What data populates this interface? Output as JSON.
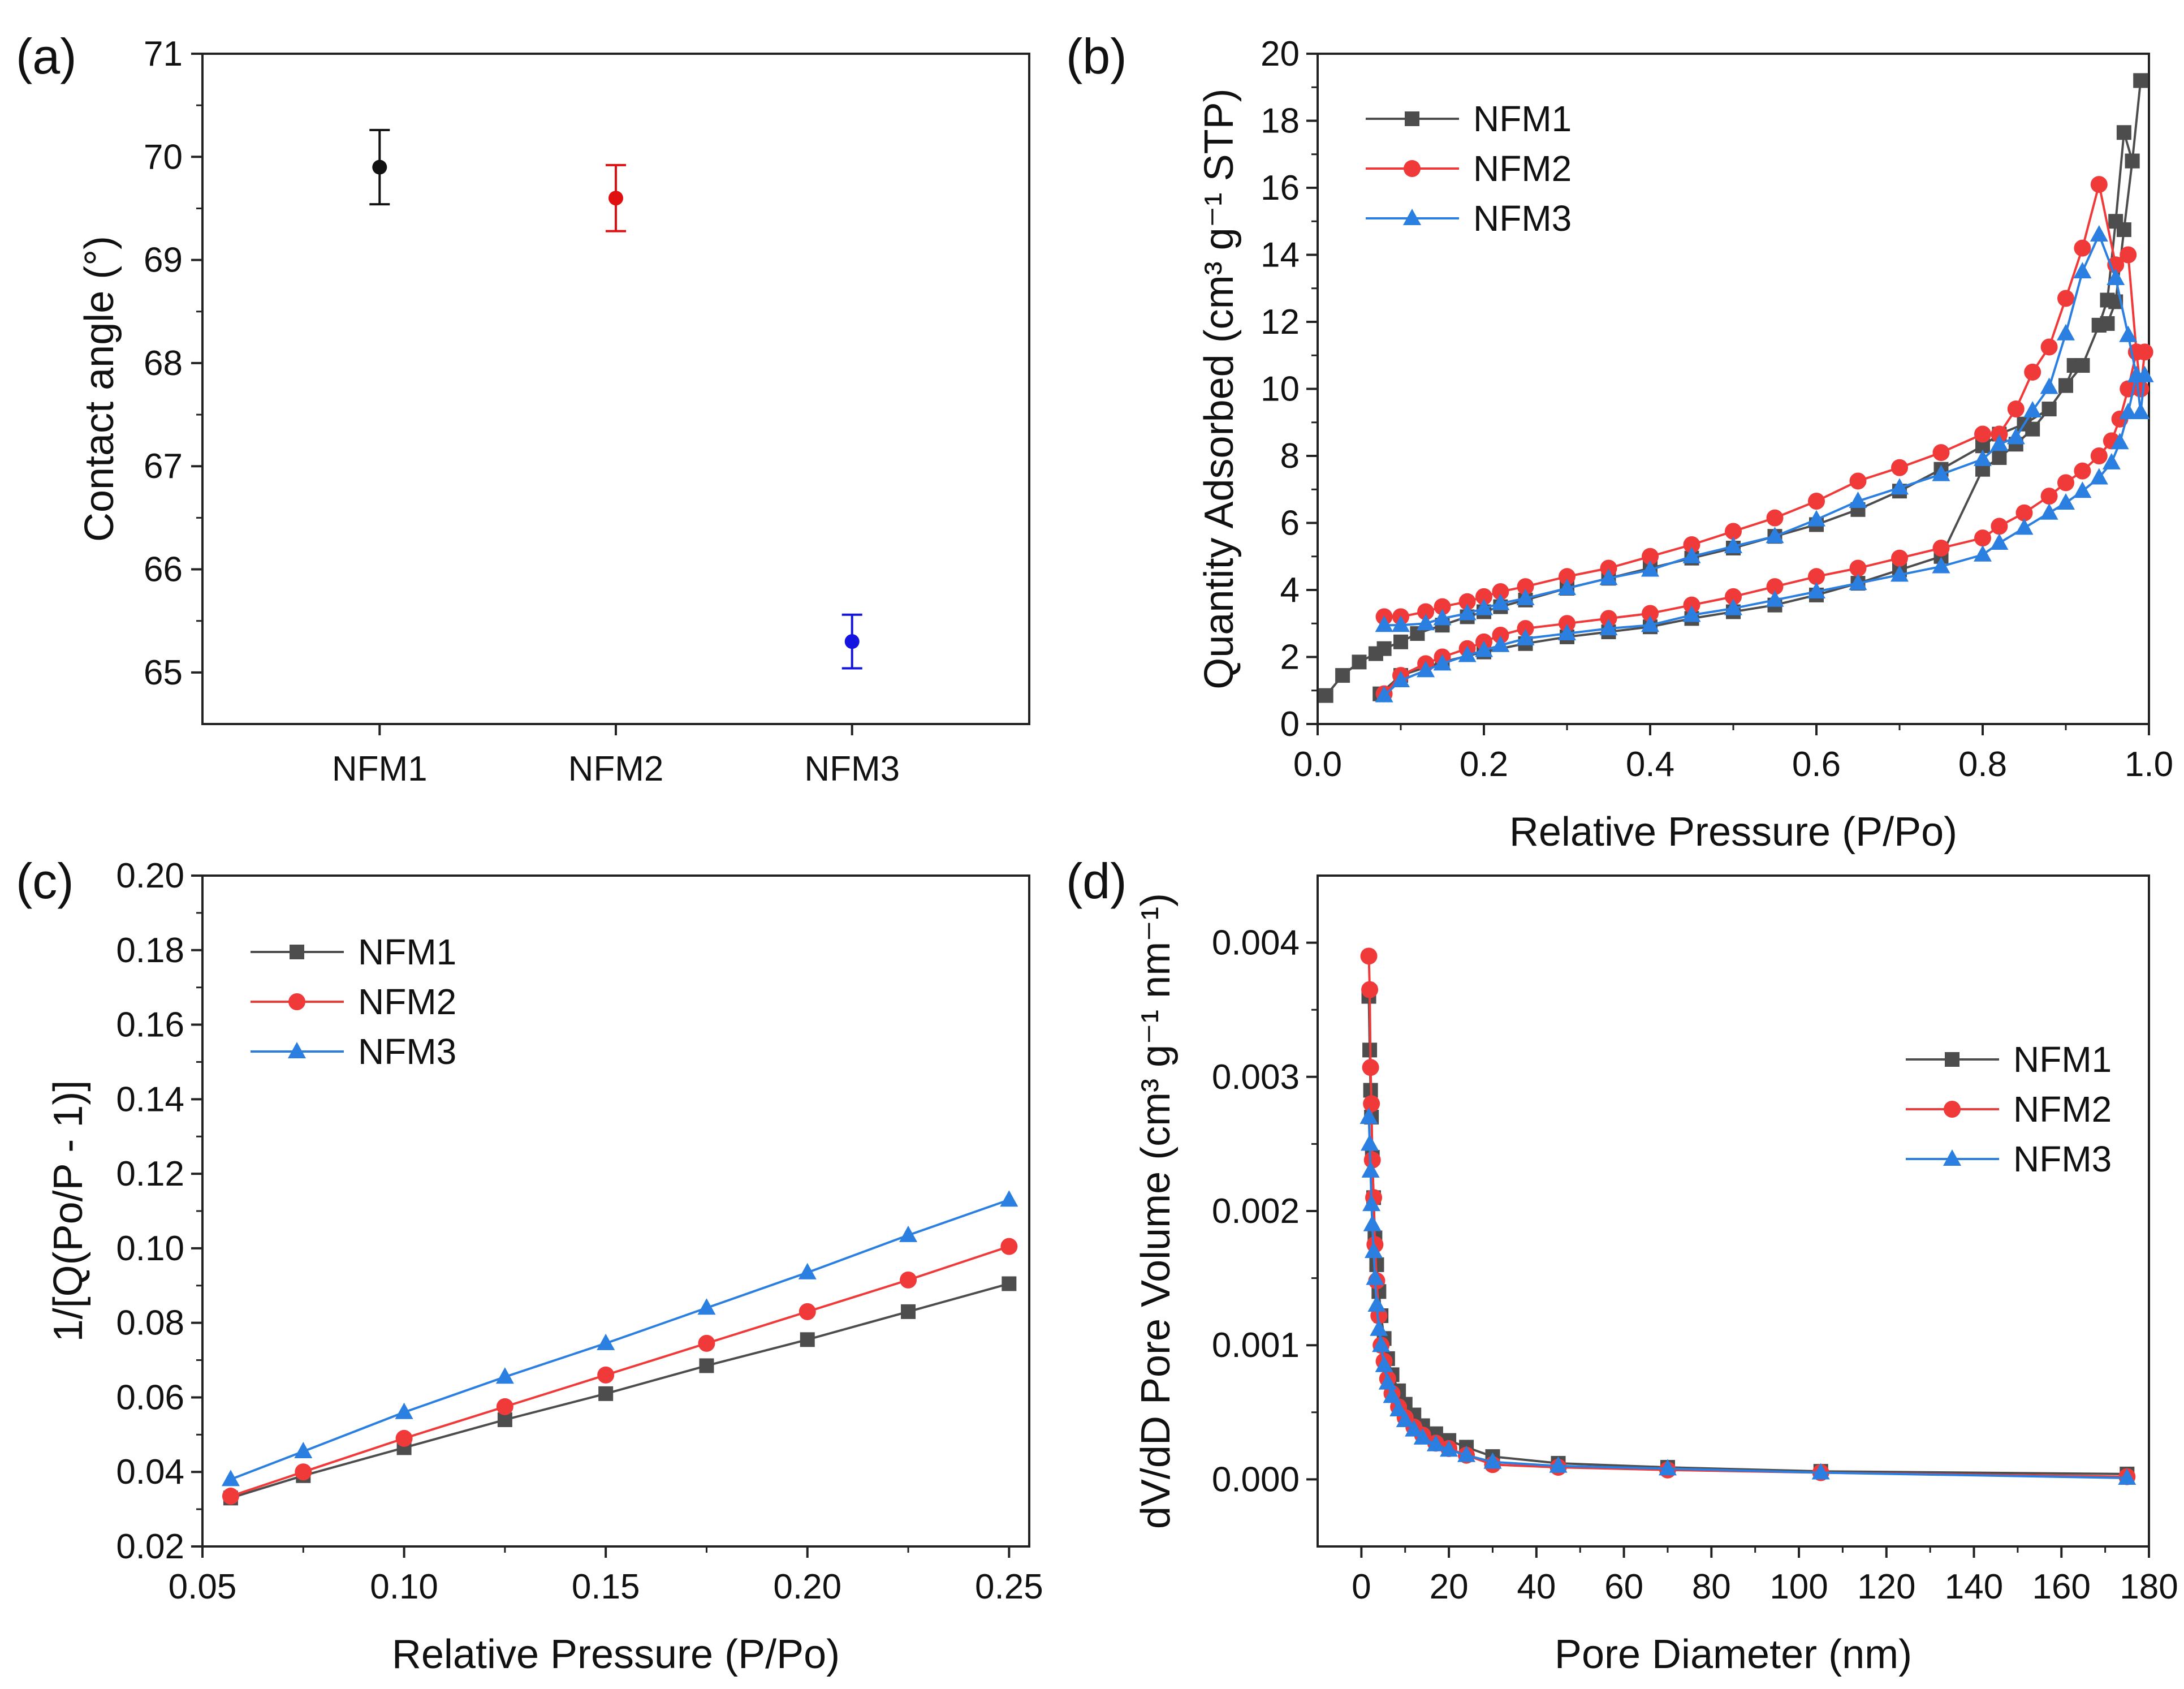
{
  "colors": {
    "NFM1": "#4d4d4d",
    "NFM2": "#f03a3a",
    "NFM3": "#2a7fe0",
    "NFM1_dot": "#111111",
    "NFM2_dot": "#e01010",
    "NFM3_dot": "#1414e0"
  },
  "chart_data": [
    {
      "id": "a",
      "panel_label": "(a)",
      "type": "scatter",
      "title": "",
      "xlabel": "",
      "ylabel": "Contact angle (°)",
      "categories": [
        "NFM1",
        "NFM2",
        "NFM3"
      ],
      "values": [
        69.9,
        69.6,
        65.3
      ],
      "errors": [
        0.36,
        0.32,
        0.26
      ],
      "ylim": [
        64.5,
        71
      ],
      "yticks": [
        "65",
        "66",
        "67",
        "68",
        "69",
        "70",
        "71"
      ],
      "ytick_values": [
        65,
        66,
        67,
        68,
        69,
        70,
        71
      ],
      "legend": null
    },
    {
      "id": "b",
      "panel_label": "(b)",
      "type": "line",
      "title": "",
      "xlabel": "Relative Pressure (P/Po)",
      "ylabel": "Quantity Adsorbed (cm³ g⁻¹ STP)",
      "xlim": [
        0,
        1
      ],
      "ylim": [
        0,
        20
      ],
      "xticks": [
        "0.0",
        "0.2",
        "0.4",
        "0.6",
        "0.8",
        "1.0"
      ],
      "xtick_values": [
        0,
        0.2,
        0.4,
        0.6,
        0.8,
        1.0
      ],
      "yticks": [
        "0",
        "2",
        "4",
        "6",
        "8",
        "10",
        "12",
        "14",
        "16",
        "18",
        "20"
      ],
      "ytick_values": [
        0,
        2,
        4,
        6,
        8,
        10,
        12,
        14,
        16,
        18,
        20
      ],
      "legend": {
        "position": "top-left",
        "entries": [
          "NFM1",
          "NFM2",
          "NFM3"
        ]
      },
      "series": [
        {
          "name": "NFM1",
          "marker": "square",
          "x": [
            0.01,
            0.03,
            0.05,
            0.07,
            0.08,
            0.1,
            0.12,
            0.15,
            0.18,
            0.2,
            0.22,
            0.25,
            0.3,
            0.35,
            0.4,
            0.45,
            0.5,
            0.55,
            0.6,
            0.65,
            0.7,
            0.75,
            0.8,
            0.82,
            0.85,
            0.88,
            0.9,
            0.91,
            0.92,
            0.94,
            0.95,
            0.96,
            0.97,
            0.98,
            0.99,
            0.99,
            0.98,
            0.97,
            0.96,
            0.95,
            0.94,
            0.92,
            0.9,
            0.88,
            0.86,
            0.84,
            0.82,
            0.8,
            0.75,
            0.7,
            0.65,
            0.6,
            0.55,
            0.5,
            0.45,
            0.4,
            0.35,
            0.3,
            0.25,
            0.2,
            0.15,
            0.1,
            0.075
          ],
          "y": [
            0.85,
            1.45,
            1.85,
            2.1,
            2.25,
            2.45,
            2.7,
            2.95,
            3.2,
            3.35,
            3.5,
            3.7,
            4.05,
            4.35,
            4.65,
            4.95,
            5.25,
            5.6,
            5.95,
            6.4,
            6.95,
            7.6,
            8.3,
            8.65,
            8.95,
            9.4,
            10.1,
            10.7,
            10.7,
            11.9,
            11.95,
            12.6,
            14.75,
            16.8,
            19.2,
            19.2,
            16.8,
            17.65,
            15.0,
            12.65,
            11.9,
            10.7,
            10.1,
            9.4,
            8.8,
            8.35,
            7.95,
            7.6,
            5.0,
            4.6,
            4.2,
            3.85,
            3.55,
            3.35,
            3.15,
            2.9,
            2.75,
            2.6,
            2.4,
            2.15,
            1.85,
            1.45,
            0.9
          ]
        },
        {
          "name": "NFM2",
          "marker": "circle",
          "x": [
            0.08,
            0.1,
            0.13,
            0.15,
            0.18,
            0.2,
            0.22,
            0.25,
            0.3,
            0.35,
            0.4,
            0.45,
            0.5,
            0.55,
            0.6,
            0.65,
            0.7,
            0.75,
            0.8,
            0.82,
            0.85,
            0.88,
            0.9,
            0.92,
            0.94,
            0.955,
            0.965,
            0.975,
            0.985,
            0.99,
            0.995,
            0.99,
            0.985,
            0.975,
            0.96,
            0.94,
            0.92,
            0.9,
            0.88,
            0.86,
            0.84,
            0.82,
            0.8,
            0.75,
            0.7,
            0.65,
            0.6,
            0.55,
            0.5,
            0.45,
            0.4,
            0.35,
            0.3,
            0.25,
            0.22,
            0.2,
            0.18,
            0.15,
            0.13,
            0.1,
            0.08
          ],
          "y": [
            0.9,
            1.45,
            1.8,
            2.0,
            2.25,
            2.45,
            2.65,
            2.85,
            3.0,
            3.15,
            3.3,
            3.55,
            3.8,
            4.1,
            4.4,
            4.65,
            4.95,
            5.25,
            5.55,
            5.9,
            6.3,
            6.8,
            7.2,
            7.55,
            8.0,
            8.45,
            9.1,
            10.0,
            11.1,
            10.0,
            11.1,
            10.0,
            11.1,
            14.0,
            13.7,
            16.1,
            14.2,
            12.7,
            11.25,
            10.5,
            9.4,
            8.65,
            8.65,
            8.1,
            7.65,
            7.25,
            6.65,
            6.15,
            5.75,
            5.35,
            5.0,
            4.65,
            4.4,
            4.1,
            3.95,
            3.8,
            3.65,
            3.5,
            3.35,
            3.2,
            3.2
          ]
        },
        {
          "name": "NFM3",
          "marker": "triangle",
          "x": [
            0.08,
            0.1,
            0.13,
            0.15,
            0.18,
            0.2,
            0.22,
            0.25,
            0.3,
            0.35,
            0.4,
            0.45,
            0.5,
            0.55,
            0.6,
            0.65,
            0.7,
            0.75,
            0.8,
            0.82,
            0.85,
            0.88,
            0.9,
            0.92,
            0.94,
            0.955,
            0.965,
            0.975,
            0.985,
            0.99,
            0.995,
            0.99,
            0.985,
            0.975,
            0.96,
            0.94,
            0.92,
            0.9,
            0.88,
            0.86,
            0.84,
            0.82,
            0.8,
            0.75,
            0.7,
            0.65,
            0.6,
            0.55,
            0.5,
            0.45,
            0.4,
            0.35,
            0.3,
            0.25,
            0.22,
            0.2,
            0.18,
            0.15,
            0.13,
            0.1,
            0.08
          ],
          "y": [
            0.85,
            1.3,
            1.6,
            1.8,
            2.05,
            2.2,
            2.35,
            2.55,
            2.7,
            2.85,
            2.95,
            3.25,
            3.45,
            3.7,
            3.95,
            4.2,
            4.45,
            4.7,
            5.05,
            5.4,
            5.85,
            6.3,
            6.6,
            6.95,
            7.35,
            7.8,
            8.4,
            9.3,
            10.4,
            9.3,
            10.4,
            9.3,
            10.4,
            11.6,
            13.3,
            14.6,
            13.5,
            11.65,
            10.05,
            9.35,
            8.55,
            8.35,
            7.9,
            7.45,
            7.05,
            6.65,
            6.1,
            5.6,
            5.3,
            5.0,
            4.6,
            4.35,
            4.05,
            3.75,
            3.6,
            3.45,
            3.3,
            3.15,
            3.0,
            2.95,
            2.95
          ]
        }
      ]
    },
    {
      "id": "c",
      "panel_label": "(c)",
      "type": "line",
      "title": "",
      "xlabel": "Relative Pressure (P/Po)",
      "ylabel": "1/[Q(Po/P - 1)]",
      "xlim": [
        0.05,
        0.255
      ],
      "ylim": [
        0.02,
        0.2
      ],
      "xticks": [
        "0.05",
        "0.10",
        "0.15",
        "0.20",
        "0.25"
      ],
      "xtick_values": [
        0.05,
        0.1,
        0.15,
        0.2,
        0.25
      ],
      "yticks": [
        "0.02",
        "0.04",
        "0.06",
        "0.08",
        "0.10",
        "0.12",
        "0.14",
        "0.16",
        "0.18",
        "0.20"
      ],
      "ytick_values": [
        0.02,
        0.04,
        0.06,
        0.08,
        0.1,
        0.12,
        0.14,
        0.16,
        0.18,
        0.2
      ],
      "legend": {
        "position": "top-left",
        "entries": [
          "NFM1",
          "NFM2",
          "NFM3"
        ]
      },
      "series": [
        {
          "name": "NFM1",
          "marker": "square",
          "x": [
            0.057,
            0.075,
            0.1,
            0.125,
            0.15,
            0.175,
            0.2,
            0.225,
            0.25
          ],
          "y": [
            0.033,
            0.039,
            0.0465,
            0.054,
            0.061,
            0.0685,
            0.0755,
            0.083,
            0.0905
          ]
        },
        {
          "name": "NFM2",
          "marker": "circle",
          "x": [
            0.057,
            0.075,
            0.1,
            0.125,
            0.15,
            0.175,
            0.2,
            0.225,
            0.25
          ],
          "y": [
            0.0335,
            0.04,
            0.049,
            0.0575,
            0.066,
            0.0745,
            0.083,
            0.0915,
            0.1005
          ]
        },
        {
          "name": "NFM3",
          "marker": "triangle",
          "x": [
            0.057,
            0.075,
            0.1,
            0.125,
            0.15,
            0.175,
            0.2,
            0.225,
            0.25
          ],
          "y": [
            0.038,
            0.0455,
            0.056,
            0.0655,
            0.0745,
            0.084,
            0.0935,
            0.1035,
            0.113
          ]
        }
      ]
    },
    {
      "id": "d",
      "panel_label": "(d)",
      "type": "line",
      "title": "",
      "xlabel": "Pore Diameter (nm)",
      "ylabel": "dV/dD Pore Volume (cm³ g⁻¹ nm⁻¹)",
      "xlim": [
        -10,
        180
      ],
      "ylim": [
        -0.0005,
        0.0045
      ],
      "xticks": [
        "0",
        "20",
        "40",
        "60",
        "80",
        "100",
        "120",
        "140",
        "160",
        "180"
      ],
      "xtick_values": [
        0,
        20,
        40,
        60,
        80,
        100,
        120,
        140,
        160,
        180
      ],
      "yticks": [
        "0.000",
        "0.001",
        "0.002",
        "0.003",
        "0.004"
      ],
      "ytick_values": [
        0,
        0.001,
        0.002,
        0.003,
        0.004
      ],
      "legend": {
        "position": "top-right",
        "entries": [
          "NFM1",
          "NFM2",
          "NFM3"
        ]
      },
      "series": [
        {
          "name": "NFM1",
          "marker": "square",
          "x": [
            1.7,
            1.9,
            2.1,
            2.3,
            2.5,
            2.8,
            3.1,
            3.5,
            4.0,
            4.5,
            5.2,
            6.0,
            7.0,
            8.5,
            10.0,
            12.0,
            14.0,
            17.0,
            20.0,
            24.0,
            30.0,
            45.0,
            70.0,
            105.0,
            175.0
          ],
          "y": [
            0.0036,
            0.0032,
            0.0029,
            0.0027,
            0.0024,
            0.0021,
            0.0018,
            0.0016,
            0.0014,
            0.00122,
            0.00105,
            0.0009,
            0.00078,
            0.00066,
            0.00056,
            0.00048,
            0.0004,
            0.00034,
            0.00029,
            0.00024,
            0.00017,
            0.00012,
            9e-05,
            6e-05,
            4e-05
          ]
        },
        {
          "name": "NFM2",
          "marker": "circle",
          "x": [
            1.7,
            1.9,
            2.1,
            2.3,
            2.5,
            2.8,
            3.1,
            3.5,
            4.0,
            4.5,
            5.2,
            6.0,
            7.0,
            8.5,
            10.0,
            12.0,
            14.0,
            17.0,
            20.0,
            24.0,
            30.0,
            45.0,
            70.0,
            105.0,
            175.0
          ],
          "y": [
            0.0039,
            0.00365,
            0.00307,
            0.0028,
            0.00238,
            0.0021,
            0.00175,
            0.00148,
            0.00122,
            0.001,
            0.00088,
            0.00075,
            0.00064,
            0.00054,
            0.00046,
            0.00039,
            0.00033,
            0.00027,
            0.00023,
            0.00018,
            0.00011,
            9e-05,
            7e-05,
            5e-05,
            2e-05
          ]
        },
        {
          "name": "NFM3",
          "marker": "triangle",
          "x": [
            1.7,
            1.9,
            2.1,
            2.3,
            2.5,
            2.8,
            3.1,
            3.5,
            4.0,
            4.5,
            5.2,
            6.0,
            7.0,
            8.5,
            10.0,
            12.0,
            14.0,
            17.0,
            20.0,
            24.0,
            30.0,
            45.0,
            70.0,
            105.0,
            175.0
          ],
          "y": [
            0.0027,
            0.0025,
            0.0023,
            0.00205,
            0.0019,
            0.0017,
            0.0015,
            0.0013,
            0.00112,
            0.001,
            0.00085,
            0.00072,
            0.00062,
            0.00052,
            0.00044,
            0.00037,
            0.00031,
            0.00026,
            0.00022,
            0.00018,
            0.00013,
            0.0001,
            8e-05,
            5e-05,
            1e-05
          ]
        }
      ]
    }
  ]
}
